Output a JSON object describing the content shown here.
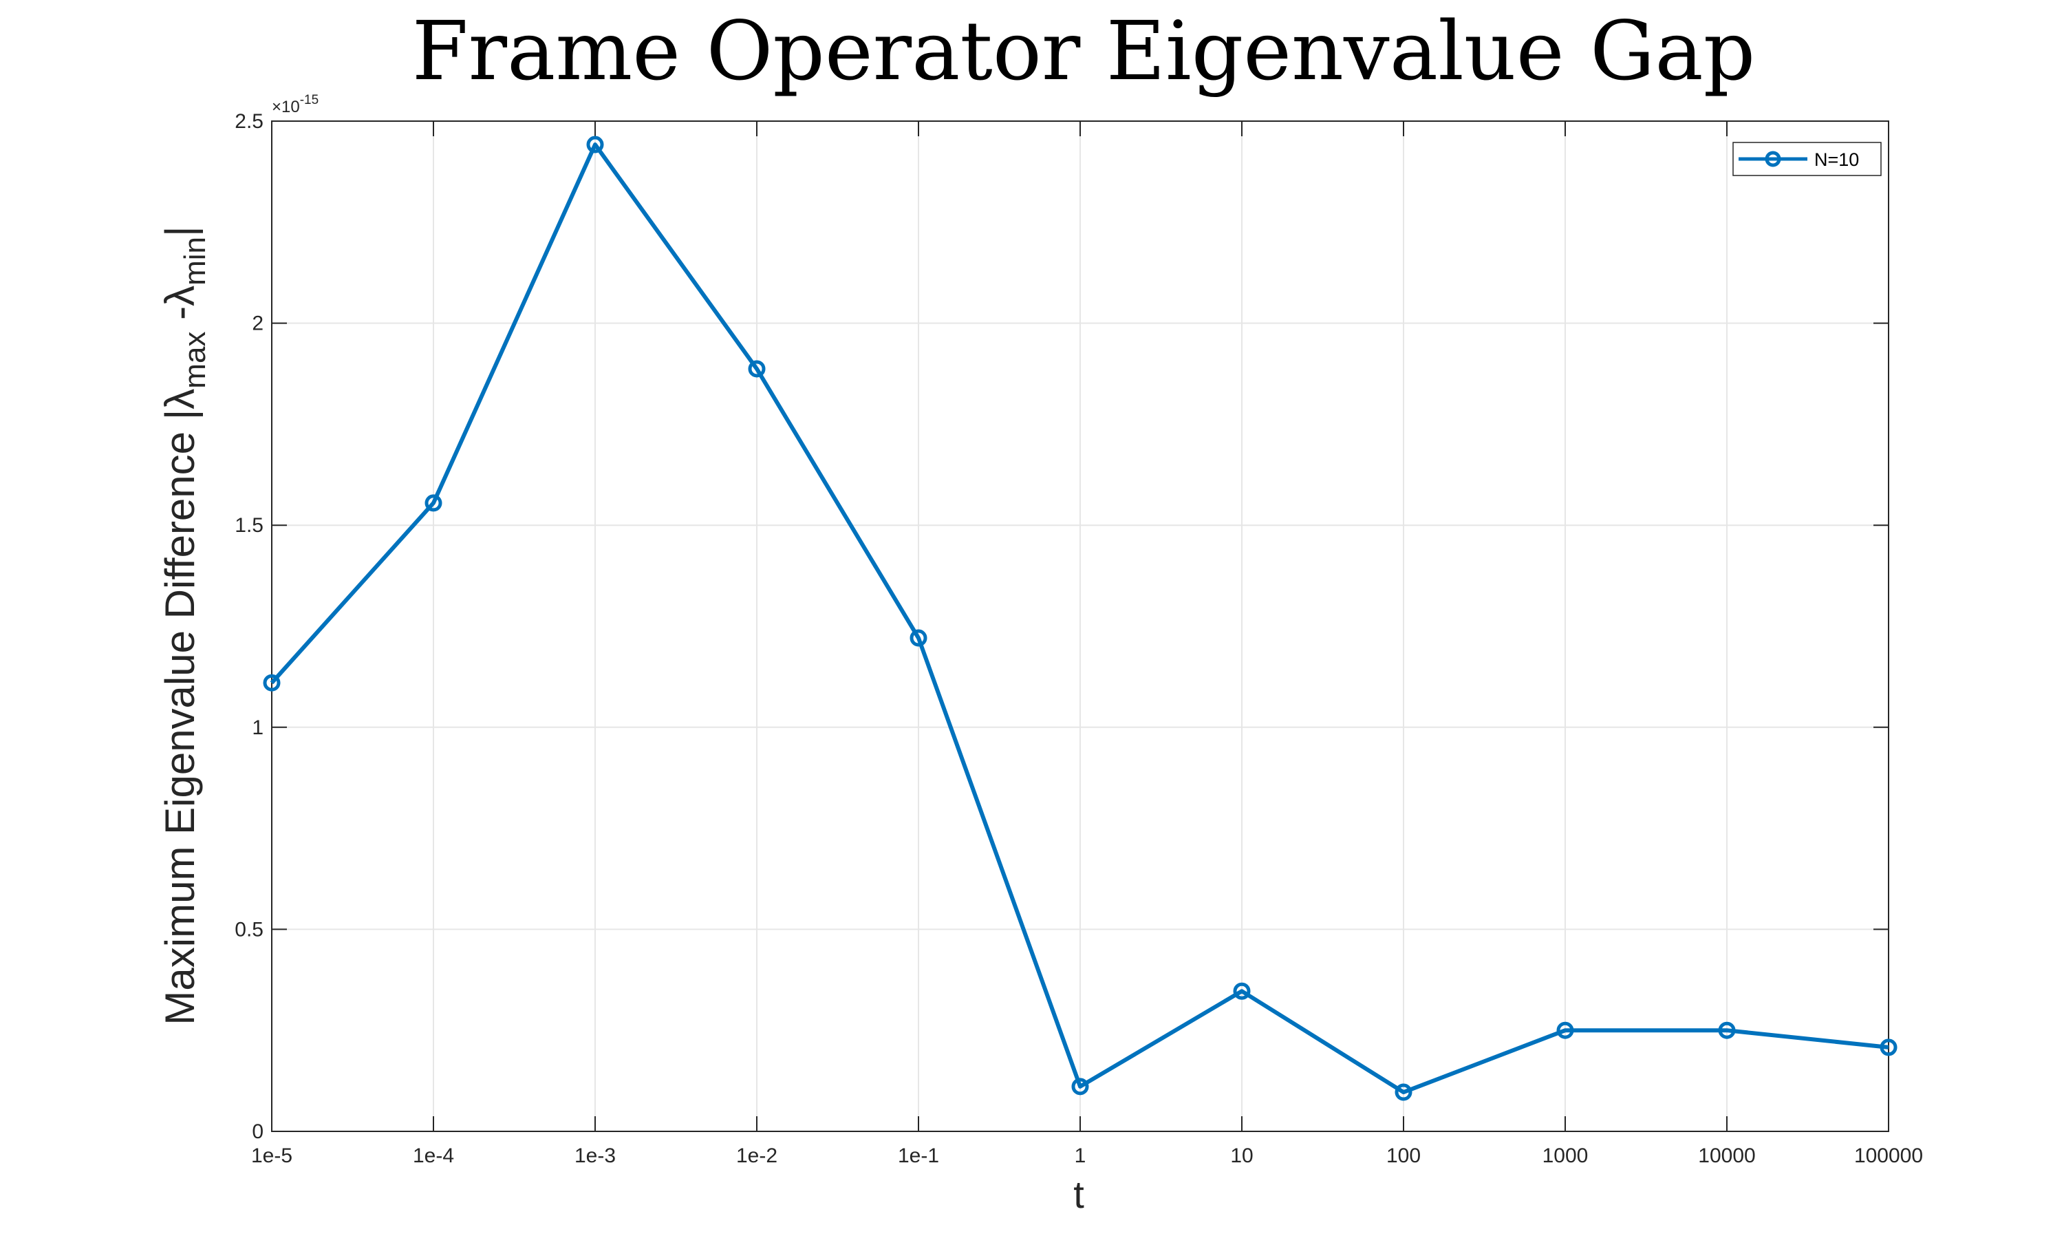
{
  "chart_data": {
    "type": "line",
    "title": "Frame Operator Eigenvalue Gap",
    "xlabel": "t",
    "ylabel": "Maximum Eigenvalue Difference |λmax-λmin|",
    "ylabel_parts": {
      "prefix": "Maximum Eigenvalue Difference |λ",
      "sub1": "max",
      "mid": " -λ",
      "sub2": "min",
      "suffix": "|"
    },
    "y_exponent_label": "×10",
    "y_exponent_power": "-15",
    "categories": [
      "1e-5",
      "1e-4",
      "1e-3",
      "1e-2",
      "1e-1",
      "1",
      "10",
      "100",
      "1000",
      "10000",
      "100000"
    ],
    "yticks": [
      "0",
      "0.5",
      "1",
      "1.5",
      "2",
      "2.5"
    ],
    "ylim": [
      0,
      2.5
    ],
    "series": [
      {
        "name": "N=10",
        "color": "#0072BD",
        "values": [
          1.11,
          1.555,
          2.442,
          1.887,
          1.221,
          0.111,
          0.347,
          0.097,
          0.25,
          0.25,
          0.208
        ]
      }
    ],
    "grid": true,
    "legend": "top-right"
  }
}
